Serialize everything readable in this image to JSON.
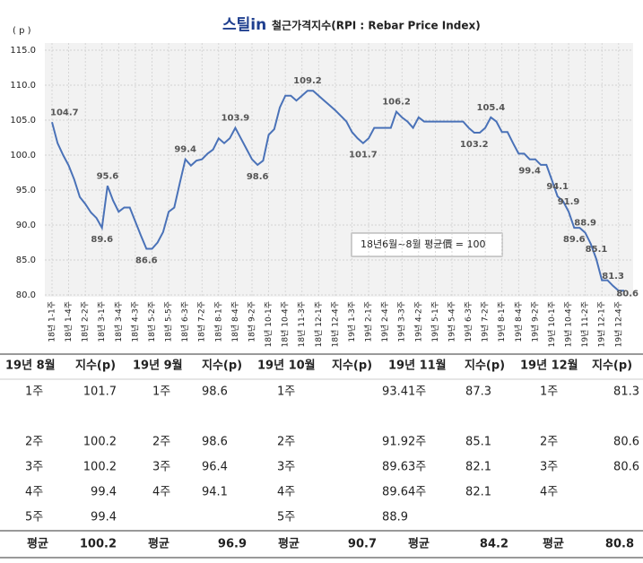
{
  "chart_data": {
    "type": "line",
    "logo": "스틸in",
    "title": "철근가격지수(RPI : Rebar Price Index)",
    "ylabel": "( p )",
    "annotation": "18년6월~8월 평균價 = 100",
    "color": "#4a72b8",
    "grid": true,
    "ylim": [
      80,
      115
    ],
    "yticks": [
      {
        "value": 80,
        "label": "80.0"
      },
      {
        "value": 85,
        "label": "85.0"
      },
      {
        "value": 90,
        "label": "90.0"
      },
      {
        "value": 95,
        "label": "95.0"
      },
      {
        "value": 100,
        "label": "100.0"
      },
      {
        "value": 105,
        "label": "105.0"
      },
      {
        "value": 110,
        "label": "110.0"
      },
      {
        "value": 115,
        "label": "115.0"
      }
    ],
    "categories": [
      "18년 1-1주",
      null,
      null,
      "18년 1-4주",
      null,
      null,
      "18년 2-2주",
      null,
      null,
      "18년 3-1주",
      null,
      null,
      "18년 3-4주",
      null,
      null,
      "18년 4-3주",
      null,
      null,
      "18년 5-2주",
      null,
      null,
      "18년 5-5주",
      null,
      null,
      "18년 6-3주",
      null,
      null,
      "18년 7-2주",
      null,
      null,
      "18년 8-1주",
      null,
      null,
      "18년 8-4주",
      null,
      null,
      "18년 9-2주",
      null,
      null,
      "18년 10-1주",
      null,
      null,
      "18년 10-4주",
      null,
      null,
      "18년 11-3주",
      null,
      null,
      "18년 12-1주",
      null,
      null,
      "18년 12-4주",
      null,
      null,
      "19년 1-3주",
      null,
      null,
      "19년 2-1주",
      null,
      null,
      "19년 2-4주",
      null,
      null,
      "19년 3-3주",
      null,
      null,
      "19년 4-2주",
      null,
      null,
      "19년 5-1주",
      null,
      null,
      "19년 5-4주",
      null,
      null,
      "19년 6-3주",
      null,
      null,
      "19년 7-2주",
      null,
      null,
      "19년 8-1주",
      null,
      null,
      "19년 8-4주",
      null,
      null,
      "19년 9-2주",
      null,
      null,
      "19년 10-1주",
      null,
      null,
      "19년 10-4주",
      null,
      null,
      "19년 11-2주",
      null,
      null,
      "19년 12-1주",
      null,
      null,
      "19년 12-4주",
      null
    ],
    "values": [
      104.7,
      101.7,
      100,
      98.5,
      96.5,
      94,
      93,
      91.8,
      91,
      89.6,
      95.6,
      93.5,
      91.9,
      92.5,
      92.5,
      90.5,
      88.5,
      86.6,
      86.6,
      87.5,
      89,
      91.9,
      92.5,
      96,
      99.4,
      98.5,
      99.2,
      99.4,
      100.2,
      100.8,
      102.4,
      101.7,
      102.4,
      103.9,
      102.4,
      100.9,
      99.4,
      98.6,
      99.2,
      102.9,
      103.7,
      106.8,
      108.5,
      108.5,
      107.8,
      108.5,
      109.2,
      109.2,
      108.5,
      107.8,
      107.1,
      106.4,
      105.6,
      104.8,
      103.3,
      102.4,
      101.7,
      102.4,
      103.9,
      103.9,
      103.9,
      103.9,
      106.2,
      105.4,
      104.8,
      103.9,
      105.4,
      104.8,
      104.8,
      104.8,
      104.8,
      104.8,
      104.8,
      104.8,
      104.8,
      103.9,
      103.2,
      103.2,
      103.9,
      105.4,
      104.8,
      103.3,
      103.3,
      101.7,
      100.2,
      100.2,
      99.4,
      99.4,
      98.6,
      98.6,
      96.4,
      94.1,
      93.4,
      91.9,
      89.6,
      89.6,
      88.9,
      87.3,
      85.1,
      82.1,
      82.1,
      81.3,
      80.6,
      80.6
    ],
    "value_labels": [
      "104.7",
      null,
      null,
      null,
      null,
      null,
      null,
      null,
      null,
      "89.6",
      "95.6",
      null,
      null,
      null,
      null,
      null,
      null,
      "86.6",
      null,
      null,
      null,
      null,
      null,
      null,
      "99.4",
      null,
      null,
      null,
      null,
      null,
      null,
      null,
      null,
      "103.9",
      null,
      null,
      null,
      "98.6",
      null,
      null,
      null,
      null,
      null,
      null,
      null,
      null,
      "109.2",
      null,
      null,
      null,
      null,
      null,
      null,
      null,
      null,
      null,
      "101.7",
      null,
      null,
      null,
      null,
      null,
      "106.2",
      null,
      null,
      null,
      null,
      null,
      null,
      null,
      null,
      null,
      null,
      null,
      null,
      null,
      "103.2",
      null,
      null,
      "105.4",
      null,
      null,
      null,
      null,
      null,
      null,
      "99.4",
      null,
      null,
      null,
      null,
      "94.1",
      null,
      "91.9",
      "89.6",
      null,
      "88.9",
      null,
      "85.1",
      null,
      null,
      "81.3",
      null,
      "80.6"
    ]
  },
  "table": {
    "groups": [
      {
        "month": "19년 8월",
        "index_header": "지수(p)",
        "weeks": [
          {
            "week": "1주",
            "value": 101.7
          },
          {
            "week": "2주",
            "value": 100.2
          },
          {
            "week": "3주",
            "value": 100.2
          },
          {
            "week": "4주",
            "value": 99.4
          },
          {
            "week": "5주",
            "value": 99.4
          }
        ],
        "avg_label": "평균",
        "avg": 100.2
      },
      {
        "month": "19년 9월",
        "index_header": "지수(p)",
        "weeks": [
          {
            "week": "1주",
            "value": 98.6
          },
          {
            "week": "2주",
            "value": 98.6
          },
          {
            "week": "3주",
            "value": 96.4
          },
          {
            "week": "4주",
            "value": 94.1
          }
        ],
        "avg_label": "평균",
        "avg": 96.9
      },
      {
        "month": "19년 10월",
        "index_header": "지수(p)",
        "weeks": [
          {
            "week": "1주",
            "value": 93.4
          },
          {
            "week": "2주",
            "value": 91.9
          },
          {
            "week": "3주",
            "value": 89.6
          },
          {
            "week": "4주",
            "value": 89.6
          },
          {
            "week": "5주",
            "value": 88.9
          }
        ],
        "avg_label": "평균",
        "avg": 90.7
      },
      {
        "month": "19년 11월",
        "index_header": "지수(p)",
        "weeks": [
          {
            "week": "1주",
            "value": 87.3
          },
          {
            "week": "2주",
            "value": 85.1
          },
          {
            "week": "3주",
            "value": 82.1
          },
          {
            "week": "4주",
            "value": 82.1
          }
        ],
        "avg_label": "평균",
        "avg": 84.2
      },
      {
        "month": "19년 12월",
        "index_header": "지수(p)",
        "weeks": [
          {
            "week": "1주",
            "value": 81.3
          },
          {
            "week": "2주",
            "value": 80.6
          },
          {
            "week": "3주",
            "value": 80.6
          },
          {
            "week": "4주",
            "value": null
          }
        ],
        "avg_label": "평균",
        "avg": 80.8
      }
    ]
  }
}
